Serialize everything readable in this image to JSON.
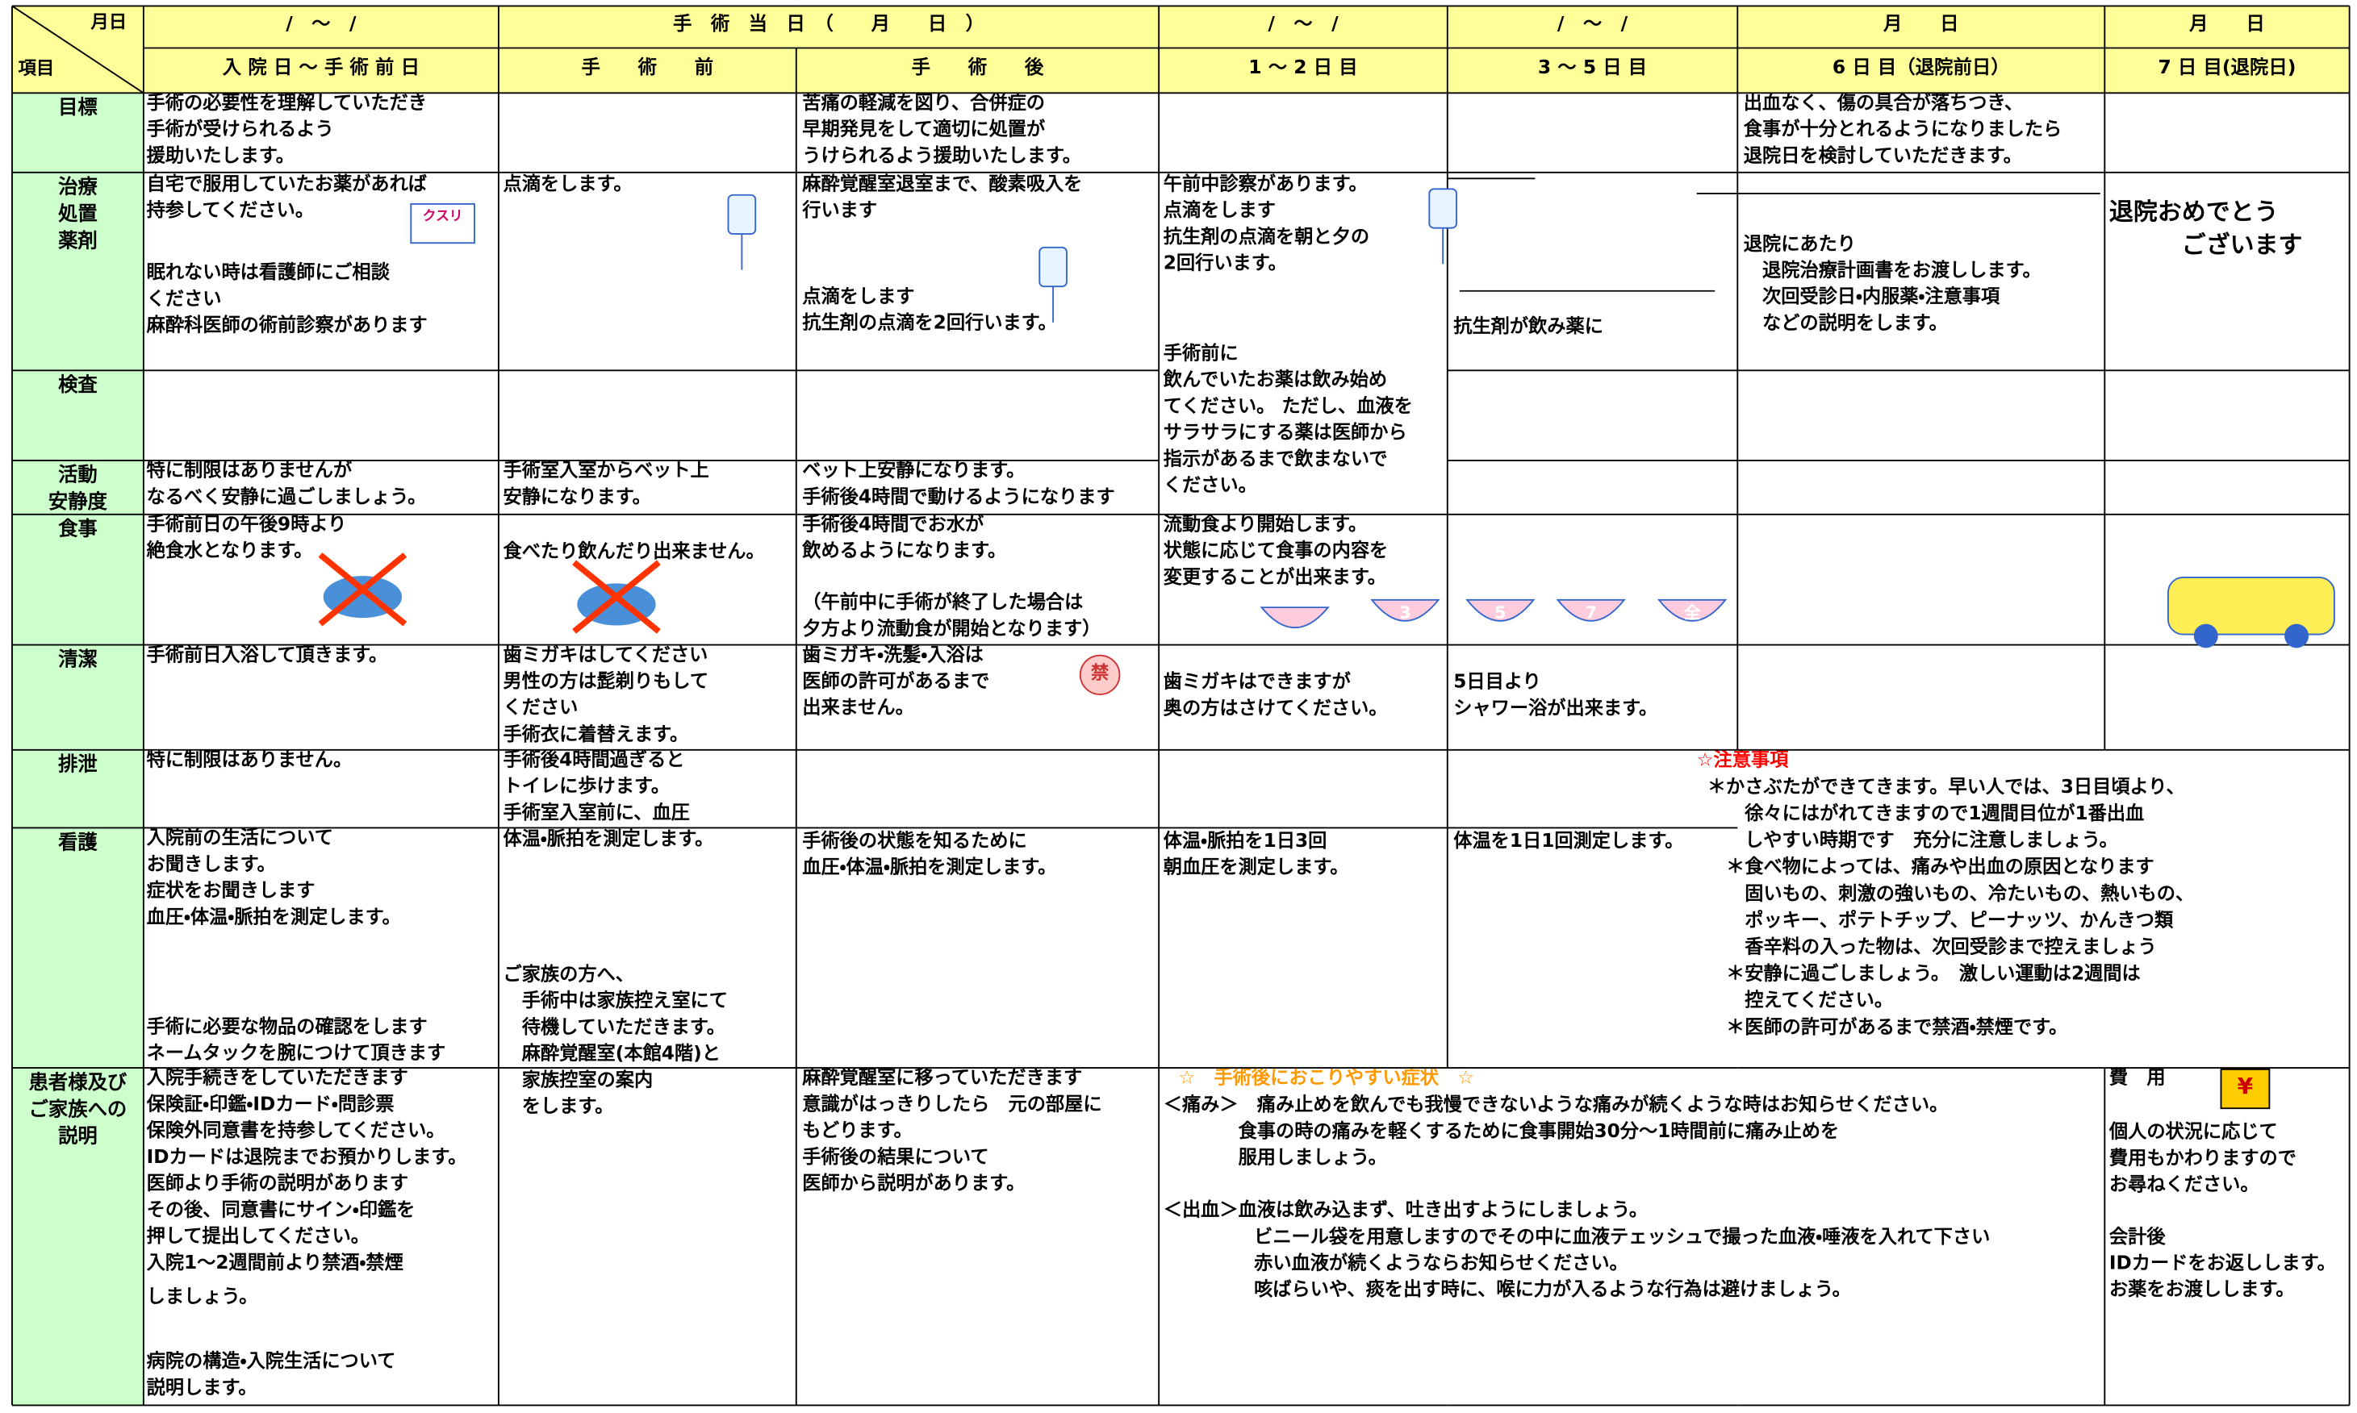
{
  "header": {
    "corner_top": "月日",
    "corner_bottom": "項目",
    "dates": [
      "/　～　/",
      "手　術　当　日　（　　月　　日　）",
      "/　～　/",
      "/　～　/",
      "月　　日",
      "月　　日"
    ],
    "phases": [
      "入 院 日 ～ 手 術 前 日",
      "手　　術　　前",
      "手　　術　　後",
      "1 ～ 2 日 目",
      "3 ～ 5 日 目",
      "6 日 目（退院前日）",
      "7 日 目(退院日)"
    ]
  },
  "row_labels": [
    [
      "目標"
    ],
    [
      "治療",
      "処置",
      "薬剤"
    ],
    [
      "検査"
    ],
    [
      "活動",
      "安静度"
    ],
    [
      "食事"
    ],
    [
      "清潔"
    ],
    [
      "排泄"
    ],
    [
      "看護"
    ],
    [
      "患者様及び",
      "ご家族への",
      "説明"
    ]
  ],
  "cells": [
    {
      "lines": [
        "手術の必要性を理解していただき",
        "手術が受けられるよう",
        "援助いたします。"
      ]
    },
    {
      "lines": [
        "苦痛の軽減を図り、合併症の",
        "早期発見をして適切に処置が",
        "うけられるよう援助いたします。"
      ]
    },
    {
      "lines": [
        "出血なく、傷の具合が落ちつき、",
        "食事が十分とれるようになりましたら",
        "退院日を検討していただきます。"
      ]
    },
    {
      "lines": [
        "自宅で服用していたお薬があれば",
        "持参してください。"
      ]
    },
    {
      "lines": [
        "眠れない時は看護師にご相談",
        "ください",
        "麻酔科医師の術前診察があります"
      ]
    },
    {
      "lines": [
        "点滴をします。"
      ]
    },
    {
      "lines": [
        "麻酔覚醒室退室まで、酸素吸入を",
        "行います"
      ]
    },
    {
      "lines": [
        "点滴をします",
        "抗生剤の点滴を2回行います。"
      ]
    },
    {
      "lines": [
        "午前中診察があります。",
        "点滴をします",
        "抗生剤の点滴を朝と夕の",
        "2回行います。"
      ]
    },
    {
      "lines": [
        "手術前に",
        "飲んでいたお薬は飲み始め",
        "てください。 ただし、血液を",
        "サラサラにする薬は医師から",
        "指示があるまで飲まないで",
        "ください。"
      ]
    },
    {
      "lines": [
        "抗生剤が飲み薬に"
      ]
    },
    {
      "lines": [
        "退院にあたり",
        "　退院治療計画書をお渡しします。",
        "　次回受診日・内服薬・注意事項",
        "　などの説明をします。"
      ]
    },
    {
      "lines": [
        "退院おめでとう",
        "　　　ございます"
      ]
    },
    {
      "lines": [
        "特に制限はありませんが",
        "なるべく安静に過ごしましょう。"
      ]
    },
    {
      "lines": [
        "手術室入室からベット上",
        "安静になります。"
      ]
    },
    {
      "lines": [
        "ベット上安静になります。",
        "手術後4時間で動けるようになります"
      ]
    },
    {
      "lines": [
        "手術前日の午後9時より",
        "絶食水となります。"
      ]
    },
    {
      "lines": [
        "食べたり飲んだり出来ません。"
      ]
    },
    {
      "lines": [
        "手術後4時間でお水が",
        "飲めるようになります。"
      ]
    },
    {
      "lines": [
        "（午前中に手術が終了した場合は",
        "夕方より流動食が開始となります）"
      ]
    },
    {
      "lines": [
        "流動食より開始します。",
        "状態に応じて食事の内容を",
        "変更することが出来ます。"
      ]
    },
    {
      "lines": [
        "手術前日入浴して頂きます。"
      ]
    },
    {
      "lines": [
        "歯ミガキはしてください",
        "男性の方は髭剃りもして",
        "ください"
      ]
    },
    {
      "lines": [
        "手術衣に着替えます。"
      ]
    },
    {
      "lines": [
        "歯ミガキ・洗髪・入浴は",
        "医師の許可があるまで",
        "出来ません。"
      ]
    },
    {
      "lines": [
        "歯ミガキはできますが",
        "奥の方はさけてください。"
      ]
    },
    {
      "lines": [
        "5日目より",
        "シャワー浴が出来ます。"
      ]
    },
    {
      "lines": [
        "特に制限はありません。"
      ]
    },
    {
      "lines": [
        "手術後4時間過ぎると",
        "トイレに歩けます。",
        "手術室入室前に、血圧",
        "体温・脈拍を測定します。"
      ]
    },
    {
      "lines": [
        "☆注意事項"
      ]
    },
    {
      "lines": [
        "＊かさぶたができてきます。早い人では、3日目頃より、",
        "　　徐々にはがれてきますので1週間目位が1番出血",
        "　　しやすい時期です　充分に注意しましょう。",
        "　＊食べ物によっては、痛みや出血の原因となります",
        "　　固いもの、刺激の強いもの、冷たいもの、熱いもの、",
        "　　ポッキー、ポテトチップ、ピーナッツ、かんきつ類",
        "　　香辛料の入った物は、次回受診まで控えましょう",
        "　＊安静に過ごしましょう。　激しい運動は2週間は",
        "　　控えてください。",
        "　＊医師の許可があるまで禁酒・禁煙です。"
      ]
    },
    {
      "lines": [
        "入院前の生活について",
        "お聞きします。",
        "症状をお聞きします",
        "血圧・体温・脈拍を測定します。"
      ]
    },
    {
      "lines": [
        "手術に必要な物品の確認をします",
        "ネームタックを腕につけて頂きます"
      ]
    },
    {
      "lines": [
        "ご家族の方へ、",
        "　手術中は家族控え室にて",
        "　待機していただきます。",
        "　麻酔覚醒室(本館4階)と",
        "　家族控室の案内",
        "　をします。"
      ]
    },
    {
      "lines": [
        "手術後の状態を知るために",
        "血圧・体温・脈拍を測定します。"
      ]
    },
    {
      "lines": [
        "体温・脈拍を1日3回",
        "朝血圧を測定します。"
      ]
    },
    {
      "lines": [
        "体温を1日1回測定します。"
      ]
    },
    {
      "lines": [
        "入院手続きをしていただきます",
        "保険証・印鑑・IDカード・問診票",
        "保険外同意書を持参してください。",
        "IDカードは退院までお預かりします。",
        "医師より手術の説明があります",
        "その後、同意書にサイン・印鑑を",
        "押して提出してください。",
        "入院1～2週間前より禁酒・禁煙"
      ]
    },
    {
      "lines": [
        "しましょう。"
      ]
    },
    {
      "lines": [
        "病院の構造・入院生活について",
        "説明します。"
      ]
    },
    {
      "lines": [
        "麻酔覚醒室に移っていただきます",
        "意識がはっきりしたら　元の部屋に",
        "もどります。",
        "手術後の結果について",
        "医師から説明があります。"
      ]
    },
    {
      "lines": [
        "☆　手術後におこりやすい症状　☆"
      ]
    },
    {
      "lines": [
        "＜痛み＞　痛み止めを飲んでも我慢できないような痛みが続くような時はお知らせください。",
        "　　　　食事の時の痛みを軽くするために食事開始30分～1時間前に痛み止めを",
        "　　　　服用しましょう。"
      ]
    },
    {
      "lines": [
        "＜出血＞血液は飲み込まず、吐き出すようにしましょう。"
      ]
    },
    {
      "lines": [
        "ビニール袋を用意しますのでその中に血液テェッシュで撮った血液・唾液を入れて下さい",
        "赤い血液が続くようならお知らせください。",
        "咳ばらいや、痰を出す時に、喉に力が入るような行為は避けましょう。"
      ]
    },
    {
      "lines": [
        "費　用"
      ]
    },
    {
      "lines": [
        "個人の状況に応じて",
        "費用もかわりますので",
        "お尋ねください。"
      ]
    },
    {
      "lines": [
        "会計後",
        "IDカードをお返しします。",
        "お薬をお渡しします。"
      ]
    }
  ],
  "icon_labels": {
    "medicine": "クスリ",
    "bowls": [
      "3",
      "5",
      "7",
      "全"
    ],
    "no_entry": "禁",
    "yen": "¥"
  }
}
